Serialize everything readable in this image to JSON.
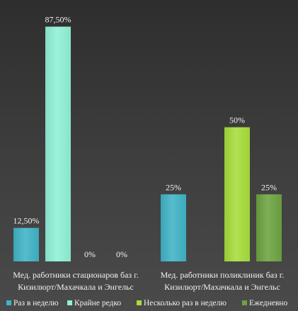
{
  "chart_data": {
    "type": "bar",
    "categories": [
      [
        "Мед. работники стационаров  баз г.",
        "Кизилюрт/Махачкала и Энгельс"
      ],
      [
        "Мед. работники поликлиник  баз г.",
        "Кизилюрт/Махачкала и Энгельс"
      ]
    ],
    "series": [
      {
        "name": "Раз в неделю",
        "color": "#3fb3c6",
        "values": [
          12.5,
          25
        ],
        "labels": [
          "12,50%",
          "25%"
        ]
      },
      {
        "name": "Крайне редко",
        "color": "#8ff0d6",
        "values": [
          87.5,
          null
        ],
        "labels": [
          "87,50%",
          ""
        ]
      },
      {
        "name": "Несколько раз в неделю",
        "color": "#a6dd3a",
        "values": [
          0,
          50
        ],
        "labels": [
          "0%",
          "50%"
        ]
      },
      {
        "name": "Ежедневно",
        "color": "#6ca340",
        "values": [
          0,
          25
        ],
        "labels": [
          "0%",
          "25%"
        ]
      }
    ],
    "ylim": [
      0,
      90
    ],
    "grid": false,
    "legend_position": "bottom"
  }
}
